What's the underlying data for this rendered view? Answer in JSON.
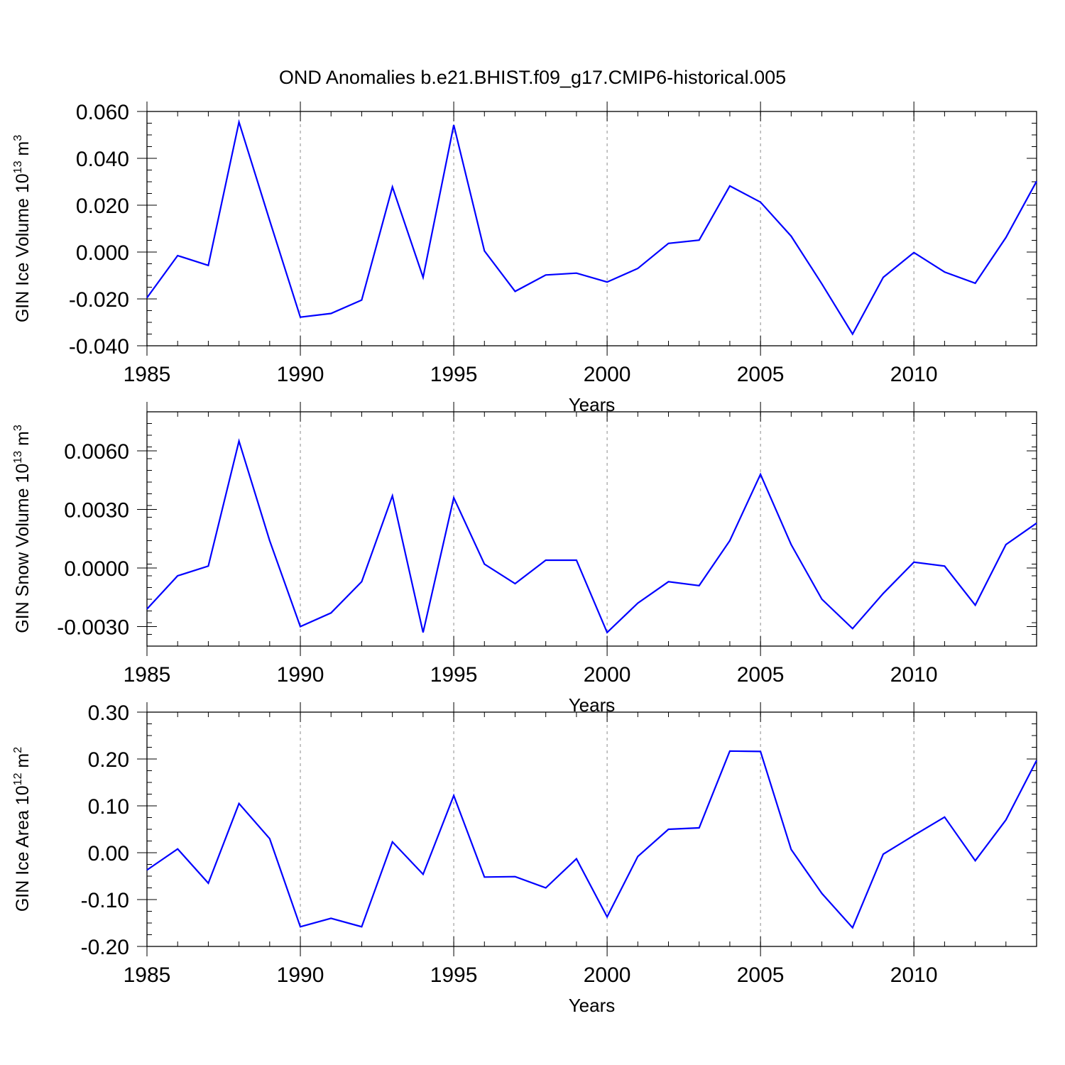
{
  "figure_title": "OND Anomalies b.e21.BHIST.f09_g17.CMIP6-historical.005",
  "chart_data": [
    {
      "type": "line",
      "ylabel": "GIN Ice Volume 10",
      "ylabel_exp": "13",
      "ylabel_unit": "m",
      "ylabel_unit_exp": "3",
      "xlabel": "Years",
      "xlim": [
        1985,
        2014
      ],
      "ylim": [
        -0.04,
        0.06
      ],
      "y_ticks": [
        -0.04,
        -0.02,
        0.0,
        0.02,
        0.04,
        0.06
      ],
      "y_tick_labels": [
        "-0.040",
        "-0.020",
        "0.000",
        "0.020",
        "0.040",
        "0.060"
      ],
      "y_minor_step": 0.005,
      "x_ticks": [
        1985,
        1990,
        1995,
        2000,
        2005,
        2010
      ],
      "x_tick_labels": [
        "1985",
        "1990",
        "1995",
        "2000",
        "2005",
        "2010"
      ],
      "color": "#0000ff",
      "x": [
        1985,
        1986,
        1987,
        1988,
        1989,
        1990,
        1991,
        1992,
        1993,
        1994,
        1995,
        1996,
        1997,
        1998,
        1999,
        2000,
        2001,
        2002,
        2003,
        2004,
        2005,
        2006,
        2007,
        2008,
        2009,
        2010,
        2011,
        2012,
        2013,
        2014
      ],
      "values": [
        -0.0195,
        -0.0015,
        -0.0057,
        0.0555,
        0.0135,
        -0.0278,
        -0.0262,
        -0.0205,
        0.0278,
        -0.0108,
        0.0542,
        0.0005,
        -0.0168,
        -0.0098,
        -0.009,
        -0.0128,
        -0.007,
        0.0037,
        0.0051,
        0.0282,
        0.0213,
        0.0068,
        -0.0136,
        -0.035,
        -0.0108,
        -0.0002,
        -0.0085,
        -0.0133,
        0.0062,
        0.0302
      ]
    },
    {
      "type": "line",
      "ylabel": "GIN Snow Volume 10",
      "ylabel_exp": "13",
      "ylabel_unit": "m",
      "ylabel_unit_exp": "3",
      "xlabel": "Years",
      "xlim": [
        1985,
        2014
      ],
      "ylim": [
        -0.004,
        0.008
      ],
      "y_ticks": [
        -0.003,
        0.0,
        0.003,
        0.006
      ],
      "y_tick_labels": [
        "-0.0030",
        "0.0000",
        "0.0030",
        "0.0060"
      ],
      "y_minor_step": 0.0006,
      "x_ticks": [
        1985,
        1990,
        1995,
        2000,
        2005,
        2010
      ],
      "x_tick_labels": [
        "1985",
        "1990",
        "1995",
        "2000",
        "2005",
        "2010"
      ],
      "color": "#0000ff",
      "x": [
        1985,
        1986,
        1987,
        1988,
        1989,
        1990,
        1991,
        1992,
        1993,
        1994,
        1995,
        1996,
        1997,
        1998,
        1999,
        2000,
        2001,
        2002,
        2003,
        2004,
        2005,
        2006,
        2007,
        2008,
        2009,
        2010,
        2011,
        2012,
        2013,
        2014
      ],
      "values": [
        -0.0021,
        -0.0004,
        0.0001,
        0.0065,
        0.0014,
        -0.003,
        -0.0023,
        -0.0007,
        0.0037,
        -0.0033,
        0.0036,
        0.0002,
        -0.0008,
        0.0004,
        0.0004,
        -0.0033,
        -0.0018,
        -0.0007,
        -0.0009,
        0.0014,
        0.0048,
        0.0012,
        -0.0016,
        -0.0031,
        -0.0013,
        0.0003,
        0.0001,
        -0.0019,
        0.0012,
        0.0023
      ]
    },
    {
      "type": "line",
      "ylabel": "GIN Ice Area 10",
      "ylabel_exp": "12",
      "ylabel_unit": "m",
      "ylabel_unit_exp": "2",
      "xlabel": "Years",
      "xlim": [
        1985,
        2014
      ],
      "ylim": [
        -0.2,
        0.3
      ],
      "y_ticks": [
        -0.2,
        -0.1,
        0.0,
        0.1,
        0.2,
        0.3
      ],
      "y_tick_labels": [
        "-0.20",
        "-0.10",
        "0.00",
        "0.10",
        "0.20",
        "0.30"
      ],
      "y_minor_step": 0.025,
      "x_ticks": [
        1985,
        1990,
        1995,
        2000,
        2005,
        2010
      ],
      "x_tick_labels": [
        "1985",
        "1990",
        "1995",
        "2000",
        "2005",
        "2010"
      ],
      "color": "#0000ff",
      "x": [
        1985,
        1986,
        1987,
        1988,
        1989,
        1990,
        1991,
        1992,
        1993,
        1994,
        1995,
        1996,
        1997,
        1998,
        1999,
        2000,
        2001,
        2002,
        2003,
        2004,
        2005,
        2006,
        2007,
        2008,
        2009,
        2010,
        2011,
        2012,
        2013,
        2014
      ],
      "values": [
        -0.037,
        0.008,
        -0.065,
        0.105,
        0.03,
        -0.158,
        -0.14,
        -0.158,
        0.023,
        -0.046,
        0.122,
        -0.052,
        -0.051,
        -0.075,
        -0.013,
        -0.137,
        -0.008,
        0.05,
        0.053,
        0.217,
        0.216,
        0.007,
        -0.087,
        -0.16,
        -0.003,
        0.037,
        0.076,
        -0.017,
        0.07,
        0.197
      ]
    }
  ]
}
